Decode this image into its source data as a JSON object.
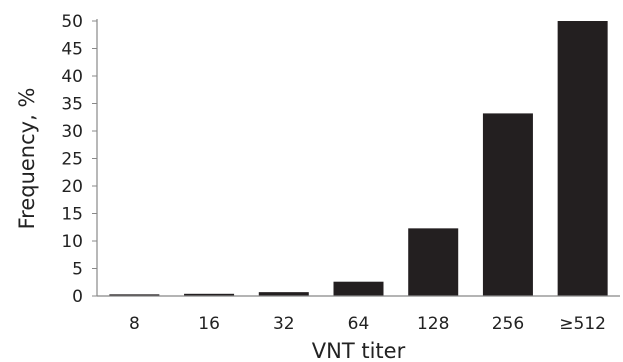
{
  "chart_data": {
    "type": "bar",
    "categories": [
      "8",
      "16",
      "32",
      "64",
      "128",
      "256",
      "≥512"
    ],
    "values": [
      0.3,
      0.4,
      0.7,
      2.6,
      12.3,
      33.2,
      50.0
    ],
    "xlabel": "VNT titer",
    "ylabel": "Frequency, %",
    "ylim": [
      0,
      50
    ],
    "yticks": [
      0,
      5,
      10,
      15,
      20,
      25,
      30,
      35,
      40,
      45,
      50
    ],
    "grid": false,
    "bar_color": "#231f20",
    "axis_color": "#888888"
  }
}
